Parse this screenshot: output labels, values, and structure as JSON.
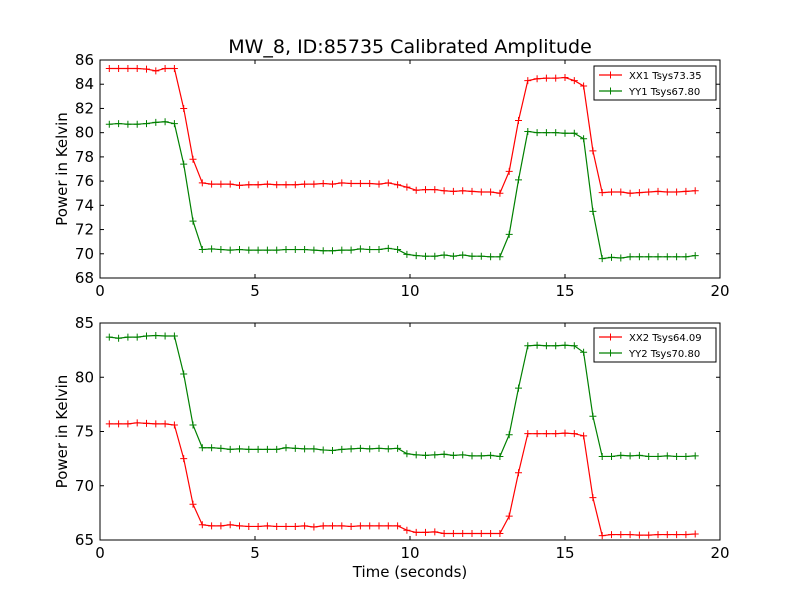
{
  "figure_title": "MW_8, ID:85735 Calibrated Amplitude",
  "chart_data": [
    {
      "type": "line",
      "title": "MW_8, ID:85735 Calibrated Amplitude",
      "xlabel": "",
      "ylabel": "Power in Kelvin",
      "xlim": [
        0,
        20
      ],
      "ylim": [
        68,
        86
      ],
      "x_ticks": [
        0,
        5,
        10,
        15,
        20
      ],
      "y_ticks": [
        68,
        70,
        72,
        74,
        76,
        78,
        80,
        82,
        84,
        86
      ],
      "grid": false,
      "legend_position": "top-right",
      "x": [
        0.3,
        0.6,
        0.9,
        1.2,
        1.5,
        1.8,
        2.1,
        2.4,
        2.7,
        3.0,
        3.3,
        3.6,
        3.9,
        4.2,
        4.5,
        4.8,
        5.1,
        5.4,
        5.7,
        6.0,
        6.3,
        6.6,
        6.9,
        7.2,
        7.5,
        7.8,
        8.1,
        8.4,
        8.7,
        9.0,
        9.3,
        9.6,
        9.9,
        10.2,
        10.5,
        10.8,
        11.1,
        11.4,
        11.7,
        12.0,
        12.3,
        12.6,
        12.9,
        13.2,
        13.5,
        13.8,
        14.1,
        14.4,
        14.7,
        15.0,
        15.3,
        15.6,
        15.9,
        16.2,
        16.5,
        16.8,
        17.1,
        17.4,
        17.7,
        18.0,
        18.3,
        18.6,
        18.9,
        19.2
      ],
      "series": [
        {
          "name": "XX1 Tsys73.35",
          "color": "#ff0000",
          "values": [
            85.3,
            85.3,
            85.3,
            85.3,
            85.25,
            85.1,
            85.3,
            85.3,
            82.0,
            77.8,
            75.85,
            75.75,
            75.75,
            75.75,
            75.65,
            75.7,
            75.7,
            75.75,
            75.7,
            75.7,
            75.7,
            75.75,
            75.75,
            75.8,
            75.75,
            75.85,
            75.8,
            75.8,
            75.8,
            75.75,
            75.85,
            75.7,
            75.5,
            75.25,
            75.3,
            75.3,
            75.2,
            75.15,
            75.2,
            75.15,
            75.1,
            75.1,
            75.0,
            76.8,
            81.0,
            84.3,
            84.45,
            84.5,
            84.5,
            84.55,
            84.3,
            83.85,
            78.5,
            75.05,
            75.1,
            75.1,
            75.0,
            75.05,
            75.1,
            75.15,
            75.1,
            75.1,
            75.15,
            75.2
          ]
        },
        {
          "name": "YY1 Tsys67.80",
          "color": "#008000",
          "values": [
            80.7,
            80.75,
            80.7,
            80.7,
            80.75,
            80.85,
            80.9,
            80.75,
            77.4,
            72.7,
            70.35,
            70.4,
            70.35,
            70.3,
            70.35,
            70.3,
            70.3,
            70.3,
            70.3,
            70.35,
            70.35,
            70.35,
            70.3,
            70.25,
            70.25,
            70.3,
            70.3,
            70.4,
            70.35,
            70.35,
            70.45,
            70.35,
            69.95,
            69.85,
            69.8,
            69.8,
            69.9,
            69.8,
            69.9,
            69.8,
            69.8,
            69.75,
            69.75,
            71.6,
            76.1,
            80.1,
            80.0,
            80.0,
            80.0,
            79.95,
            79.95,
            79.5,
            73.5,
            69.6,
            69.7,
            69.65,
            69.75,
            69.75,
            69.75,
            69.75,
            69.75,
            69.75,
            69.75,
            69.85
          ]
        }
      ]
    },
    {
      "type": "line",
      "title": "",
      "xlabel": "Time (seconds)",
      "ylabel": "Power in Kelvin",
      "xlim": [
        0,
        20
      ],
      "ylim": [
        65,
        85
      ],
      "x_ticks": [
        0,
        5,
        10,
        15,
        20
      ],
      "y_ticks": [
        65,
        70,
        75,
        80,
        85
      ],
      "grid": false,
      "legend_position": "top-right",
      "x": [
        0.3,
        0.6,
        0.9,
        1.2,
        1.5,
        1.8,
        2.1,
        2.4,
        2.7,
        3.0,
        3.3,
        3.6,
        3.9,
        4.2,
        4.5,
        4.8,
        5.1,
        5.4,
        5.7,
        6.0,
        6.3,
        6.6,
        6.9,
        7.2,
        7.5,
        7.8,
        8.1,
        8.4,
        8.7,
        9.0,
        9.3,
        9.6,
        9.9,
        10.2,
        10.5,
        10.8,
        11.1,
        11.4,
        11.7,
        12.0,
        12.3,
        12.6,
        12.9,
        13.2,
        13.5,
        13.8,
        14.1,
        14.4,
        14.7,
        15.0,
        15.3,
        15.6,
        15.9,
        16.2,
        16.5,
        16.8,
        17.1,
        17.4,
        17.7,
        18.0,
        18.3,
        18.6,
        18.9,
        19.2
      ],
      "series": [
        {
          "name": "XX2 Tsys64.09",
          "color": "#ff0000",
          "values": [
            75.7,
            75.7,
            75.7,
            75.8,
            75.75,
            75.7,
            75.7,
            75.6,
            72.5,
            68.3,
            66.4,
            66.3,
            66.3,
            66.4,
            66.3,
            66.25,
            66.25,
            66.3,
            66.25,
            66.25,
            66.25,
            66.3,
            66.2,
            66.3,
            66.3,
            66.3,
            66.25,
            66.3,
            66.3,
            66.3,
            66.3,
            66.3,
            65.9,
            65.7,
            65.7,
            65.75,
            65.6,
            65.6,
            65.6,
            65.6,
            65.6,
            65.6,
            65.6,
            67.2,
            71.2,
            74.8,
            74.8,
            74.8,
            74.8,
            74.85,
            74.8,
            74.6,
            68.9,
            65.4,
            65.5,
            65.5,
            65.5,
            65.45,
            65.45,
            65.5,
            65.5,
            65.5,
            65.5,
            65.55
          ]
        },
        {
          "name": "YY2 Tsys70.80",
          "color": "#008000",
          "values": [
            83.7,
            83.6,
            83.7,
            83.7,
            83.8,
            83.85,
            83.8,
            83.8,
            80.3,
            75.6,
            73.5,
            73.5,
            73.45,
            73.35,
            73.4,
            73.35,
            73.35,
            73.35,
            73.35,
            73.5,
            73.45,
            73.4,
            73.4,
            73.3,
            73.25,
            73.35,
            73.4,
            73.45,
            73.4,
            73.45,
            73.4,
            73.45,
            72.95,
            72.85,
            72.8,
            72.85,
            72.9,
            72.8,
            72.85,
            72.75,
            72.75,
            72.8,
            72.7,
            74.7,
            79.0,
            82.9,
            82.95,
            82.9,
            82.9,
            82.95,
            82.9,
            82.3,
            76.4,
            72.7,
            72.7,
            72.8,
            72.75,
            72.8,
            72.7,
            72.7,
            72.75,
            72.7,
            72.7,
            72.75
          ]
        }
      ]
    }
  ]
}
